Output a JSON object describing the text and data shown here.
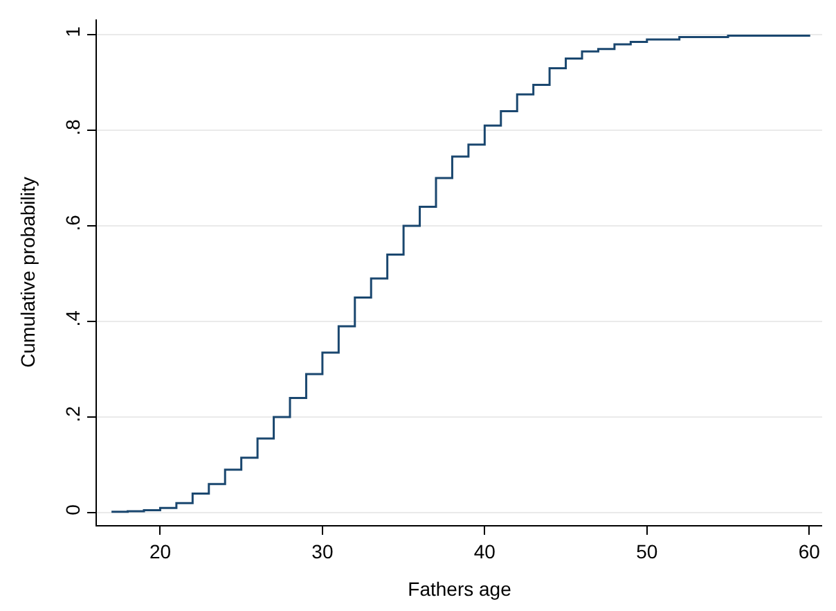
{
  "chart_data": {
    "type": "step",
    "xlabel": "Fathers age",
    "ylabel": "Cumulative probability",
    "x": [
      17,
      18,
      19,
      20,
      21,
      22,
      23,
      24,
      25,
      26,
      27,
      28,
      29,
      30,
      31,
      32,
      33,
      34,
      35,
      36,
      37,
      38,
      39,
      40,
      41,
      42,
      43,
      44,
      45,
      46,
      47,
      48,
      49,
      50,
      52,
      55,
      60
    ],
    "series": [
      {
        "color": "#1a476f",
        "values": [
          0.002,
          0.003,
          0.005,
          0.01,
          0.02,
          0.04,
          0.06,
          0.09,
          0.115,
          0.155,
          0.2,
          0.24,
          0.29,
          0.335,
          0.39,
          0.45,
          0.49,
          0.54,
          0.6,
          0.64,
          0.7,
          0.745,
          0.77,
          0.81,
          0.84,
          0.875,
          0.895,
          0.93,
          0.95,
          0.965,
          0.97,
          0.98,
          0.985,
          0.99,
          0.995,
          0.998,
          1.0
        ]
      }
    ],
    "xlim": [
      16.1,
      60.8
    ],
    "xticks": [
      20,
      30,
      40,
      50,
      60
    ],
    "ylim": [
      -0.026,
      1.032
    ],
    "yticks": [
      {
        "value": 0,
        "label": "0"
      },
      {
        "value": 0.2,
        "label": ".2"
      },
      {
        "value": 0.4,
        "label": ".4"
      },
      {
        "value": 0.6,
        "label": ".6"
      },
      {
        "value": 0.8,
        "label": ".8"
      },
      {
        "value": 1,
        "label": "1"
      }
    ],
    "grid": "y",
    "marker": "none",
    "line_style": "solid"
  }
}
